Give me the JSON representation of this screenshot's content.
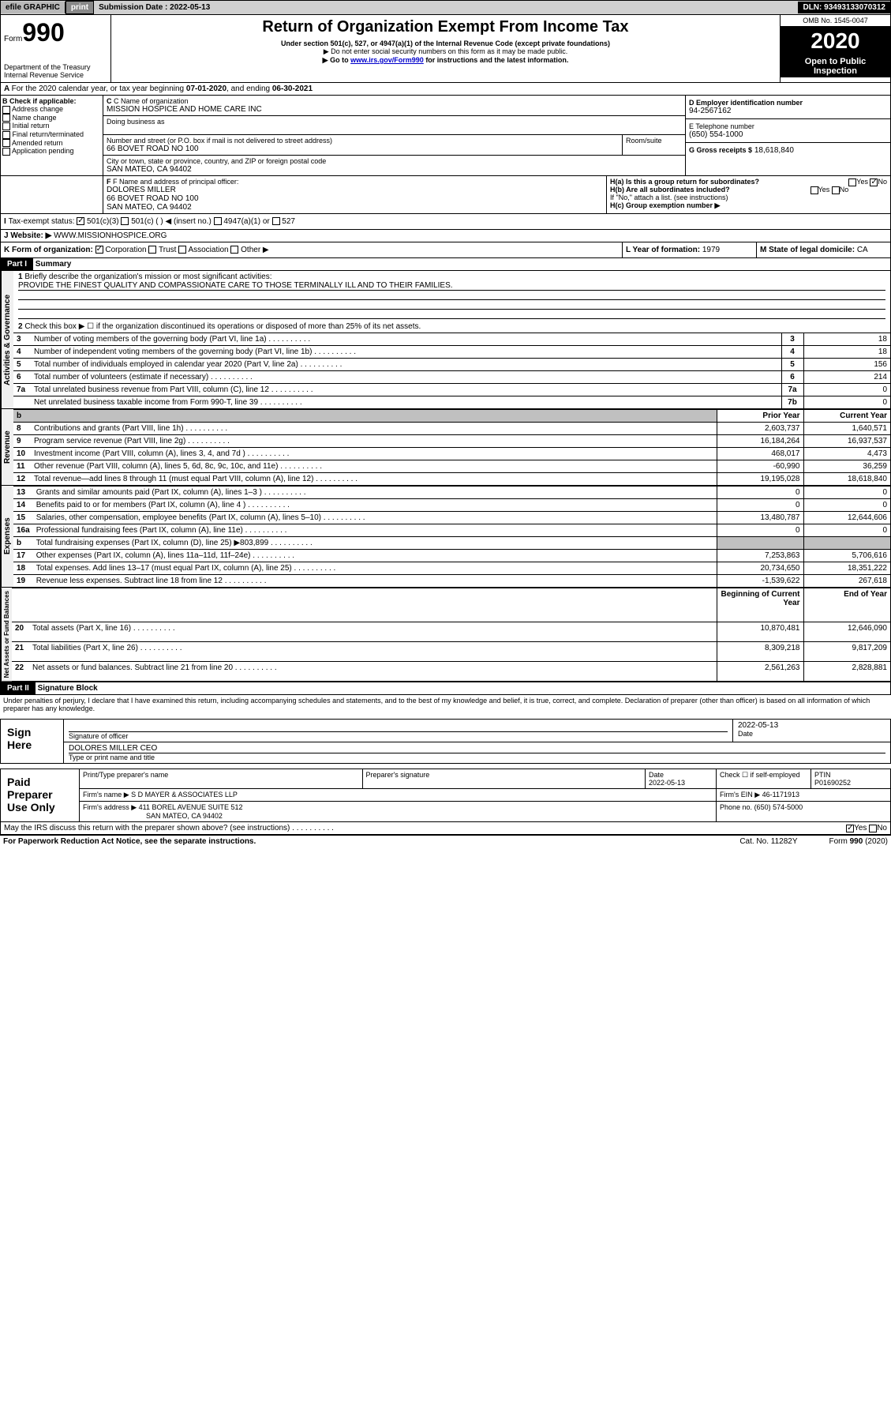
{
  "header": {
    "efile_label": "efile GRAPHIC",
    "print_label": "print",
    "submission_label": "Submission Date :",
    "submission_date": "2022-05-13",
    "dln_label": "DLN: 93493133070312"
  },
  "formhead": {
    "form_label": "Form",
    "form_no": "990",
    "dept": "Department of the Treasury\nInternal Revenue Service",
    "title": "Return of Organization Exempt From Income Tax",
    "subtitle": "Under section 501(c), 527, or 4947(a)(1) of the Internal Revenue Code (except private foundations)",
    "note1": "Do not enter social security numbers on this form as it may be made public.",
    "note2_pre": "Go to ",
    "note2_link": "www.irs.gov/Form990",
    "note2_post": " for instructions and the latest information.",
    "omb": "OMB No. 1545-0047",
    "year": "2020",
    "badge": "Open to Public Inspection"
  },
  "period": {
    "text_a": "For the 2020 calendar year, or tax year beginning ",
    "begin": "07-01-2020",
    "text_b": ", and ending ",
    "end": "06-30-2021"
  },
  "boxB": {
    "label": "B Check if applicable:",
    "items": [
      "Address change",
      "Name change",
      "Initial return",
      "Final return/terminated",
      "Amended return",
      "Application pending"
    ]
  },
  "boxC": {
    "name_label": "C Name of organization",
    "name": "MISSION HOSPICE AND HOME CARE INC",
    "dba_label": "Doing business as",
    "street_label": "Number and street (or P.O. box if mail is not delivered to street address)",
    "room_label": "Room/suite",
    "street": "66 BOVET ROAD NO 100",
    "city_label": "City or town, state or province, country, and ZIP or foreign postal code",
    "city": "SAN MATEO, CA  94402"
  },
  "boxD": {
    "label": "D Employer identification number",
    "value": "94-2567162"
  },
  "boxE": {
    "label": "E Telephone number",
    "value": "(650) 554-1000"
  },
  "boxG": {
    "label": "G Gross receipts $",
    "value": "18,618,840"
  },
  "boxF": {
    "label": "F Name and address of principal officer:",
    "name": "DOLORES MILLER",
    "addr1": "66 BOVET ROAD NO 100",
    "addr2": "SAN MATEO, CA  94402"
  },
  "boxH": {
    "a": "H(a)  Is this a group return for subordinates?",
    "b": "H(b)  Are all subordinates included?",
    "note": "If \"No,\" attach a list. (see instructions)",
    "c": "H(c)  Group exemption number ▶",
    "yes": "Yes",
    "no": "No"
  },
  "boxI": {
    "label": "Tax-exempt status:",
    "opts": [
      "501(c)(3)",
      "501(c) (   ) ◀ (insert no.)",
      "4947(a)(1) or",
      "527"
    ]
  },
  "boxJ": {
    "label": "Website: ▶",
    "value": "WWW.MISSIONHOSPICE.ORG"
  },
  "boxK": {
    "label": "K Form of organization:",
    "opts": [
      "Corporation",
      "Trust",
      "Association",
      "Other ▶"
    ]
  },
  "boxL": {
    "label": "L Year of formation:",
    "value": "1979"
  },
  "boxM": {
    "label": "M State of legal domicile:",
    "value": "CA"
  },
  "part1": {
    "hdr": "Part I",
    "title": "Summary",
    "q1": "Briefly describe the organization's mission or most significant activities:",
    "q1v": "PROVIDE THE FINEST QUALITY AND COMPASSIONATE CARE TO THOSE TERMINALLY ILL AND TO THEIR FAMILIES.",
    "q2": "Check this box ▶ ☐  if the organization discontinued its operations or disposed of more than 25% of its net assets.",
    "lines_gov": [
      {
        "n": "3",
        "t": "Number of voting members of the governing body (Part VI, line 1a)",
        "b": "3",
        "v": "18"
      },
      {
        "n": "4",
        "t": "Number of independent voting members of the governing body (Part VI, line 1b)",
        "b": "4",
        "v": "18"
      },
      {
        "n": "5",
        "t": "Total number of individuals employed in calendar year 2020 (Part V, line 2a)",
        "b": "5",
        "v": "156"
      },
      {
        "n": "6",
        "t": "Total number of volunteers (estimate if necessary)",
        "b": "6",
        "v": "214"
      },
      {
        "n": "7a",
        "t": "Total unrelated business revenue from Part VIII, column (C), line 12",
        "b": "7a",
        "v": "0"
      },
      {
        "n": "",
        "t": "Net unrelated business taxable income from Form 990-T, line 39",
        "b": "7b",
        "v": "0"
      }
    ],
    "th_prior": "Prior Year",
    "th_curr": "Current Year",
    "rev": [
      {
        "n": "8",
        "t": "Contributions and grants (Part VIII, line 1h)",
        "p": "2,603,737",
        "c": "1,640,571"
      },
      {
        "n": "9",
        "t": "Program service revenue (Part VIII, line 2g)",
        "p": "16,184,264",
        "c": "16,937,537"
      },
      {
        "n": "10",
        "t": "Investment income (Part VIII, column (A), lines 3, 4, and 7d )",
        "p": "468,017",
        "c": "4,473"
      },
      {
        "n": "11",
        "t": "Other revenue (Part VIII, column (A), lines 5, 6d, 8c, 9c, 10c, and 11e)",
        "p": "-60,990",
        "c": "36,259"
      },
      {
        "n": "12",
        "t": "Total revenue—add lines 8 through 11 (must equal Part VIII, column (A), line 12)",
        "p": "19,195,028",
        "c": "18,618,840"
      }
    ],
    "exp": [
      {
        "n": "13",
        "t": "Grants and similar amounts paid (Part IX, column (A), lines 1–3 )",
        "p": "0",
        "c": "0"
      },
      {
        "n": "14",
        "t": "Benefits paid to or for members (Part IX, column (A), line 4 )",
        "p": "0",
        "c": "0"
      },
      {
        "n": "15",
        "t": "Salaries, other compensation, employee benefits (Part IX, column (A), lines 5–10)",
        "p": "13,480,787",
        "c": "12,644,606"
      },
      {
        "n": "16a",
        "t": "Professional fundraising fees (Part IX, column (A), line 11e)",
        "p": "0",
        "c": "0"
      },
      {
        "n": "b",
        "t": "Total fundraising expenses (Part IX, column (D), line 25) ▶803,899",
        "p": "",
        "c": "",
        "gray": true
      },
      {
        "n": "17",
        "t": "Other expenses (Part IX, column (A), lines 11a–11d, 11f–24e)",
        "p": "7,253,863",
        "c": "5,706,616"
      },
      {
        "n": "18",
        "t": "Total expenses. Add lines 13–17 (must equal Part IX, column (A), line 25)",
        "p": "20,734,650",
        "c": "18,351,222"
      },
      {
        "n": "19",
        "t": "Revenue less expenses. Subtract line 18 from line 12",
        "p": "-1,539,622",
        "c": "267,618"
      }
    ],
    "th_boy": "Beginning of Current Year",
    "th_eoy": "End of Year",
    "net": [
      {
        "n": "20",
        "t": "Total assets (Part X, line 16)",
        "p": "10,870,481",
        "c": "12,646,090"
      },
      {
        "n": "21",
        "t": "Total liabilities (Part X, line 26)",
        "p": "8,309,218",
        "c": "9,817,209"
      },
      {
        "n": "22",
        "t": "Net assets or fund balances. Subtract line 21 from line 20",
        "p": "2,561,263",
        "c": "2,828,881"
      }
    ],
    "vlab_gov": "Activities & Governance",
    "vlab_rev": "Revenue",
    "vlab_exp": "Expenses",
    "vlab_net": "Net Assets or Fund Balances"
  },
  "part2": {
    "hdr": "Part II",
    "title": "Signature Block",
    "decl": "Under penalties of perjury, I declare that I have examined this return, including accompanying schedules and statements, and to the best of my knowledge and belief, it is true, correct, and complete. Declaration of preparer (other than officer) is based on all information of which preparer has any knowledge.",
    "sign_here": "Sign Here",
    "sig_officer": "Signature of officer",
    "sig_date": "2022-05-13",
    "date_label": "Date",
    "officer_name": "DOLORES MILLER CEO",
    "officer_sub": "Type or print name and title",
    "paid": "Paid Preparer Use Only",
    "prep_name_label": "Print/Type preparer's name",
    "prep_sig_label": "Preparer's signature",
    "prep_date": "2022-05-13",
    "self_emp": "Check ☐ if self-employed",
    "ptin_label": "PTIN",
    "ptin": "P01690252",
    "firm_name_label": "Firm's name   ▶",
    "firm_name": "S D MAYER & ASSOCIATES LLP",
    "firm_ein_label": "Firm's EIN ▶",
    "firm_ein": "46-1171913",
    "firm_addr_label": "Firm's address ▶",
    "firm_addr1": "411 BOREL AVENUE SUITE 512",
    "firm_addr2": "SAN MATEO, CA  94402",
    "phone_label": "Phone no.",
    "phone": "(650) 574-5000",
    "discuss": "May the IRS discuss this return with the preparer shown above? (see instructions)",
    "yes": "Yes",
    "no": "No"
  },
  "footer": {
    "pra": "For Paperwork Reduction Act Notice, see the separate instructions.",
    "cat": "Cat. No. 11282Y",
    "form": "Form 990 (2020)"
  }
}
